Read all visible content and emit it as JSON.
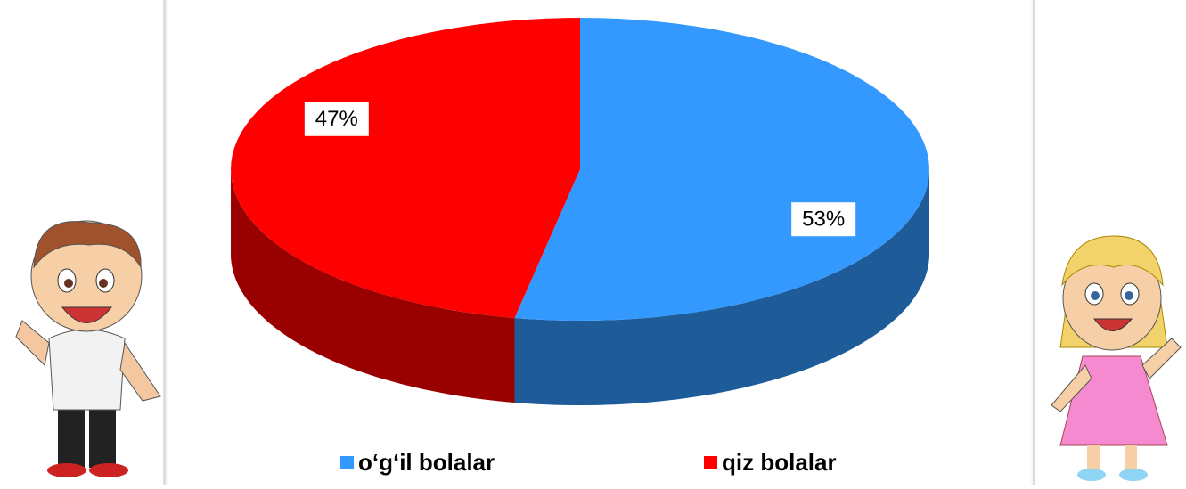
{
  "chart_data": {
    "type": "pie",
    "categories": [
      "o‘g‘il bolalar",
      "qiz bolalar"
    ],
    "values": [
      53,
      47
    ],
    "value_labels": [
      "53%",
      "47%"
    ],
    "colors": [
      "#3399ff",
      "#ff0000"
    ]
  }
}
